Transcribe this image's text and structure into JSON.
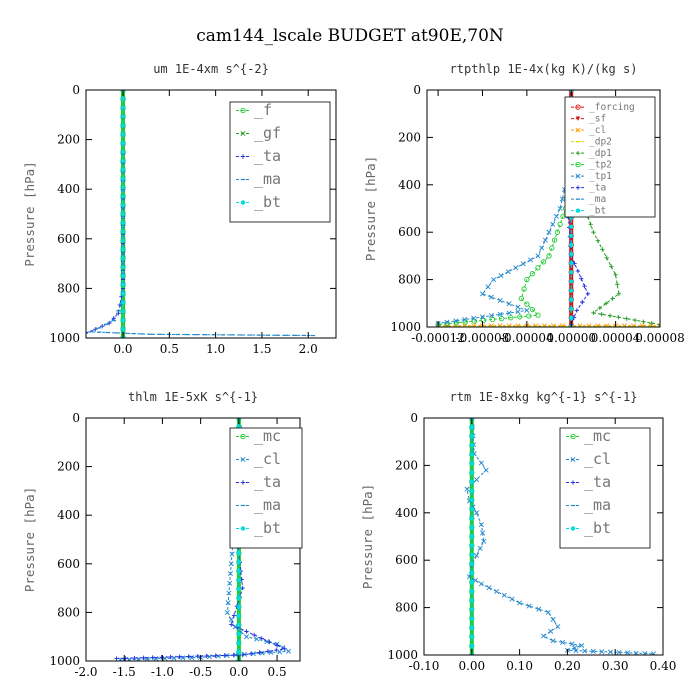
{
  "figure_title": "cam144_lscale  BUDGET at90E,70N",
  "colors": {
    "green": "#22cc33",
    "darkgreen": "#229922",
    "blue": "#2233dd",
    "steel": "#2288cc",
    "cyan": "#00dddd",
    "red": "#dd1111",
    "orange": "#ff9900",
    "yellow": "#dddd00"
  },
  "chart_data": [
    {
      "type": "line",
      "title": "um  1E-4xm s^{-2}",
      "ylabel": "Pressure [hPa]",
      "xlim": [
        -0.4,
        2.3
      ],
      "ylim": [
        1000,
        0
      ],
      "xticks": [
        "0.0",
        "0.5",
        "1.0",
        "1.5",
        "2.0"
      ],
      "xtickvals": [
        0,
        0.5,
        1.0,
        1.5,
        2.0
      ],
      "yticks": [
        "0",
        "200",
        "400",
        "600",
        "800",
        "1000"
      ],
      "ytickvals": [
        0,
        200,
        400,
        600,
        800,
        1000
      ],
      "legend": {
        "position": "top-right",
        "entries": [
          "_f",
          "_gf",
          "_ta",
          "_ma",
          "_bt"
        ]
      },
      "series": [
        {
          "name": "_f",
          "color": "green",
          "x": [
            0,
            0
          ],
          "y": [
            0,
            1000
          ]
        },
        {
          "name": "_gf",
          "color": "darkgreen",
          "x": [
            0,
            0
          ],
          "y": [
            0,
            1000
          ]
        },
        {
          "name": "_ta",
          "color": "blue",
          "x": [
            0,
            0,
            -0.05,
            -0.15,
            -0.3,
            -0.4
          ],
          "y": [
            0,
            800,
            900,
            940,
            965,
            980
          ]
        },
        {
          "name": "_ma",
          "color": "steel",
          "x": [
            0,
            0,
            -0.1,
            -0.35,
            0.3,
            2.05
          ],
          "y": [
            0,
            850,
            930,
            975,
            985,
            990
          ]
        },
        {
          "name": "_bt",
          "color": "cyan",
          "x": [
            0,
            0
          ],
          "y": [
            0,
            1000
          ]
        }
      ]
    },
    {
      "type": "line",
      "title": "rtpthlp  1E-4x(kg K)/(kg s)",
      "ylabel": "Pressure [hPa]",
      "xlim": [
        -0.00013,
        8e-05
      ],
      "ylim": [
        1000,
        0
      ],
      "xticks": [
        "-0.00012",
        "-0.00008",
        "-0.00004",
        "0.00000",
        "0.00004",
        "0.00008"
      ],
      "xtickvals": [
        -0.00012,
        -8e-05,
        -4e-05,
        0,
        4e-05,
        8e-05
      ],
      "yticks": [
        "0",
        "200",
        "400",
        "600",
        "800",
        "1000"
      ],
      "ytickvals": [
        0,
        200,
        400,
        600,
        800,
        1000
      ],
      "legend": {
        "position": "top-right",
        "entries": [
          "_forcing",
          "_sf",
          "_cl",
          "_dp2",
          "_dp1",
          "_tp2",
          "_tp1",
          "_ta",
          "_ma",
          "_bt"
        ]
      },
      "series": [
        {
          "name": "_forcing",
          "color": "red",
          "x": [
            0,
            0
          ],
          "y": [
            0,
            1000
          ]
        },
        {
          "name": "_sf",
          "color": "red",
          "x": [
            0,
            0
          ],
          "y": [
            0,
            1000
          ]
        },
        {
          "name": "_cl",
          "color": "orange",
          "x": [
            -0.00012,
            8e-05
          ],
          "y": [
            995,
            995
          ]
        },
        {
          "name": "_dp2",
          "color": "yellow",
          "x": [
            -0.00012,
            8e-05
          ],
          "y": [
            998,
            998
          ]
        },
        {
          "name": "_dp1",
          "color": "darkgreen",
          "x": [
            0,
            5e-06,
            2e-05,
            4e-05,
            4.3e-05,
            2e-05,
            8e-05
          ],
          "y": [
            250,
            400,
            600,
            780,
            860,
            940,
            990
          ]
        },
        {
          "name": "_tp2",
          "color": "green",
          "x": [
            0,
            -5e-06,
            -2e-05,
            -4e-05,
            -4.5e-05,
            -3e-05,
            -0.00012
          ],
          "y": [
            300,
            500,
            700,
            800,
            880,
            950,
            990
          ]
        },
        {
          "name": "_tp1",
          "color": "steel",
          "x": [
            0,
            -1e-05,
            -3e-05,
            -7e-05,
            -8e-05,
            -4e-05,
            -0.00012
          ],
          "y": [
            300,
            500,
            700,
            800,
            860,
            930,
            985
          ]
        },
        {
          "name": "_ta",
          "color": "blue",
          "x": [
            0,
            -3e-06,
            0,
            1.5e-05,
            5e-06,
            0
          ],
          "y": [
            300,
            500,
            700,
            860,
            930,
            990
          ]
        },
        {
          "name": "_ma",
          "color": "steel",
          "x": [
            0,
            0
          ],
          "y": [
            0,
            1000
          ]
        },
        {
          "name": "_bt",
          "color": "cyan",
          "x": [
            0,
            0
          ],
          "y": [
            0,
            1000
          ]
        }
      ]
    },
    {
      "type": "line",
      "title": "thlm  1E-5xK s^{-1}",
      "ylabel": "Pressure [hPa]",
      "xlim": [
        -2.0,
        0.8
      ],
      "ylim": [
        1000,
        0
      ],
      "xticks": [
        "-2.0",
        "-1.5",
        "-1.0",
        "-0.5",
        "0.0",
        "0.5"
      ],
      "xtickvals": [
        -2.0,
        -1.5,
        -1.0,
        -0.5,
        0,
        0.5
      ],
      "yticks": [
        "0",
        "200",
        "400",
        "600",
        "800",
        "1000"
      ],
      "ytickvals": [
        0,
        200,
        400,
        600,
        800,
        1000
      ],
      "legend": {
        "position": "top-right",
        "entries": [
          "_mc",
          "_cl",
          "_ta",
          "_ma",
          "_bt"
        ]
      },
      "series": [
        {
          "name": "_mc",
          "color": "green",
          "x": [
            0,
            0
          ],
          "y": [
            0,
            1000
          ]
        },
        {
          "name": "_cl",
          "color": "steel",
          "x": [
            0,
            0.05,
            -0.05,
            -0.1,
            -0.15,
            -0.05,
            0.1,
            0.5,
            0.65,
            -0.5,
            -1.55
          ],
          "y": [
            0,
            200,
            400,
            600,
            800,
            860,
            900,
            930,
            960,
            985,
            995
          ]
        },
        {
          "name": "_ta",
          "color": "blue",
          "x": [
            0,
            0.05,
            -0.05,
            0.05,
            -0.1,
            0.6,
            0.05,
            -1.6
          ],
          "y": [
            0,
            220,
            420,
            700,
            850,
            950,
            975,
            990
          ]
        },
        {
          "name": "_ma",
          "color": "steel",
          "x": [
            0,
            0
          ],
          "y": [
            0,
            1000
          ]
        },
        {
          "name": "_bt",
          "color": "cyan",
          "x": [
            0,
            0
          ],
          "y": [
            0,
            1000
          ]
        }
      ]
    },
    {
      "type": "line",
      "title": "rtm  1E-8xkg kg^{-1} s^{-1}",
      "ylabel": "Pressure [hPa]",
      "xlim": [
        -0.1,
        0.4
      ],
      "ylim": [
        1000,
        0
      ],
      "xticks": [
        "-0.10",
        "0.00",
        "0.10",
        "0.20",
        "0.30",
        "0.40"
      ],
      "xtickvals": [
        -0.1,
        0,
        0.1,
        0.2,
        0.3,
        0.4
      ],
      "yticks": [
        "0",
        "200",
        "400",
        "600",
        "800",
        "1000"
      ],
      "ytickvals": [
        0,
        200,
        400,
        600,
        800,
        1000
      ],
      "legend": {
        "position": "top-right",
        "entries": [
          "_mc",
          "_cl",
          "_ta",
          "_ma",
          "_bt"
        ]
      },
      "series": [
        {
          "name": "_mc",
          "color": "green",
          "x": [
            0,
            0
          ],
          "y": [
            0,
            1000
          ]
        },
        {
          "name": "_cl",
          "color": "steel",
          "x": [
            0,
            0.005,
            0.02,
            0.03,
            0.01,
            -0.01,
            -0.005,
            0.01,
            0.02,
            0.025,
            0.01,
            0.0,
            -0.005,
            0.02,
            0.1,
            0.16,
            0.18,
            0.15,
            0.17,
            0.23,
            0.2,
            0.38
          ],
          "y": [
            0,
            150,
            190,
            220,
            260,
            300,
            350,
            400,
            450,
            520,
            580,
            620,
            670,
            700,
            780,
            820,
            880,
            920,
            940,
            960,
            980,
            995
          ]
        },
        {
          "name": "_ta",
          "color": "blue",
          "x": [
            0,
            0
          ],
          "y": [
            0,
            1000
          ]
        },
        {
          "name": "_ma",
          "color": "steel",
          "x": [
            0,
            0
          ],
          "y": [
            0,
            1000
          ]
        },
        {
          "name": "_bt",
          "color": "cyan",
          "x": [
            0,
            0
          ],
          "y": [
            0,
            1000
          ]
        }
      ]
    }
  ]
}
